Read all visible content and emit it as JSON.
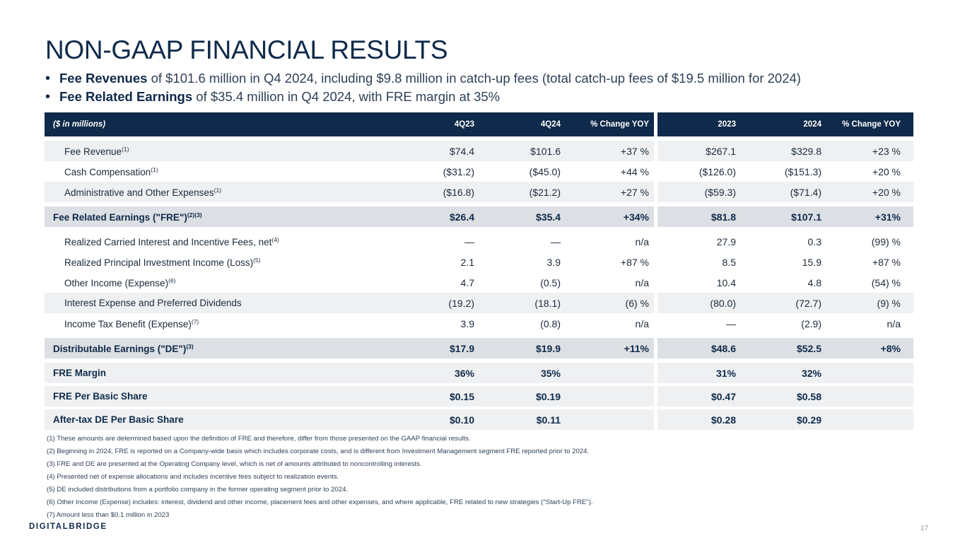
{
  "title": "NON-GAAP FINANCIAL RESULTS",
  "bullets": [
    {
      "highlight": "Fee Revenues",
      "text": " of $101.6 million in Q4 2024, including $9.8 million in catch-up fees (total catch-up fees of $19.5 million for 2024)"
    },
    {
      "highlight": "Fee Related Earnings",
      "text": " of $35.4 million in Q4 2024, with FRE margin at 35%"
    }
  ],
  "table": {
    "unit_label": "($ in millions)",
    "columns": [
      "4Q23",
      "4Q24",
      "% Change YOY",
      "2023",
      "2024",
      "% Change YOY"
    ],
    "rows": [
      {
        "name": "Fee Revenue",
        "sup": "(1)",
        "values": [
          "$74.4",
          "$101.6",
          "+37 %",
          "$267.1",
          "$329.8",
          "+23 %"
        ]
      },
      {
        "name": "Cash Compensation",
        "sup": "(1)",
        "values": [
          "($31.2)",
          "($45.0)",
          "+44 %",
          "($126.0)",
          "($151.3)",
          "+20 %"
        ]
      },
      {
        "name": "Administrative and Other Expenses",
        "sup": "(1)",
        "values": [
          "($16.8)",
          "($21.2)",
          "+27 %",
          "($59.3)",
          "($71.4)",
          "+20 %"
        ]
      },
      {
        "name": "Fee Related Earnings (\"FRE\")",
        "sup": "(2)(3)",
        "values": [
          "$26.4",
          "$35.4",
          "+34%",
          "$81.8",
          "$107.1",
          "+31%"
        ]
      },
      {
        "name": "Realized Carried Interest and Incentive Fees, net",
        "sup": "(4)",
        "values": [
          "—",
          "—",
          "n/a",
          "27.9",
          "0.3",
          "(99) %"
        ]
      },
      {
        "name": "Realized Principal Investment Income (Loss)",
        "sup": "(5)",
        "values": [
          "2.1",
          "3.9",
          "+87 %",
          "8.5",
          "15.9",
          "+87 %"
        ]
      },
      {
        "name": "Other Income (Expense)",
        "sup": "(6)",
        "values": [
          "4.7",
          "(0.5)",
          "n/a",
          "10.4",
          "4.8",
          "(54) %"
        ]
      },
      {
        "name": "Interest Expense and Preferred Dividends",
        "sup": "",
        "values": [
          "(19.2)",
          "(18.1)",
          "(6) %",
          "(80.0)",
          "(72.7)",
          "(9) %"
        ]
      },
      {
        "name": "Income Tax Benefit (Expense)",
        "sup": "(7)",
        "values": [
          "3.9",
          "(0.8)",
          "n/a",
          "—",
          "(2.9)",
          "n/a"
        ]
      },
      {
        "name": "Distributable Earnings (\"DE\")",
        "sup": "(3)",
        "values": [
          "$17.9",
          "$19.9",
          "+11%",
          "$48.6",
          "$52.5",
          "+8%"
        ]
      },
      {
        "name": "FRE Margin",
        "sup": "",
        "values": [
          "36%",
          "35%",
          "",
          "31%",
          "32%",
          ""
        ]
      },
      {
        "name": "FRE Per Basic Share",
        "sup": "",
        "values": [
          "$0.15",
          "$0.19",
          "",
          "$0.47",
          "$0.58",
          ""
        ]
      },
      {
        "name": "After-tax DE Per Basic Share",
        "sup": "",
        "values": [
          "$0.10",
          "$0.11",
          "",
          "$0.28",
          "$0.29",
          ""
        ]
      }
    ]
  },
  "footnotes": [
    "(1) These amounts are determined based upon the definition of FRE and therefore, differ from those presented on the GAAP financial results.",
    "(2) Beginning in 2024, FRE is reported on a Company-wide basis which includes corporate costs, and is different from Investment Management segment FRE reported prior to 2024.",
    "(3) FRE and DE are presented at the Operating Company level, which is net of amounts attributed to noncontrolling interests.",
    "(4) Presented net of expense allocations and includes incentive fees subject to realization events.",
    "(5) DE included distributions from a portfolio company in the former operating segment prior to 2024.",
    "(6) Other Income (Expense) includes: interest, dividend and other income, placement fees and other expenses, and where applicable, FRE related to new strategies (\"Start-Up FRE\").",
    "(7) Amount less than $0.1 million in 2023"
  ],
  "logo": "DIGITALBRIDGE",
  "page_number": "17"
}
